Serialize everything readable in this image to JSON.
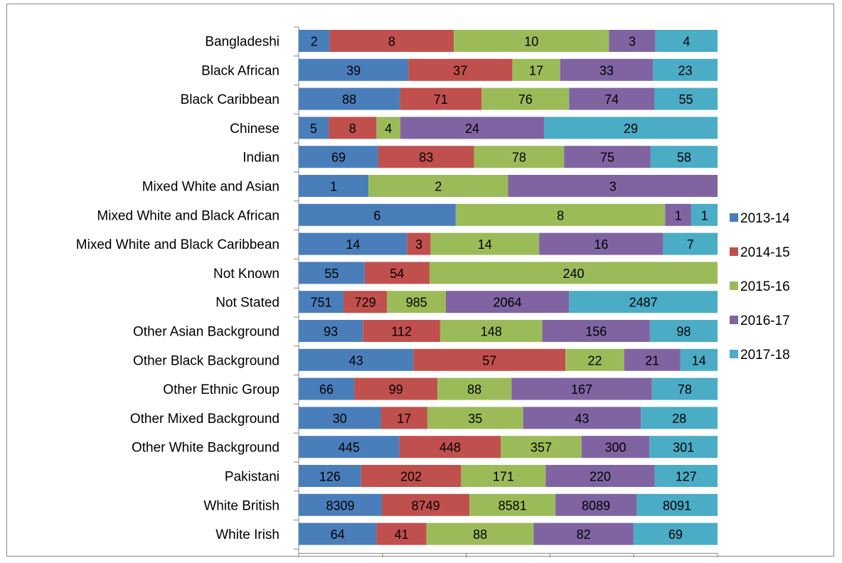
{
  "chart_data": {
    "type": "bar",
    "orientation": "horizontal",
    "stacked": "percent",
    "title": "",
    "xlabel": "",
    "ylabel": "",
    "xlim": [
      0,
      1
    ],
    "grid": false,
    "legend_position": "right",
    "categories": [
      "Bangladeshi",
      "Black African",
      "Black Caribbean",
      "Chinese",
      "Indian",
      "Mixed White and Asian",
      "Mixed White and Black African",
      "Mixed White and Black Caribbean",
      "Not Known",
      "Not Stated",
      "Other Asian Background",
      "Other Black Background",
      "Other Ethnic Group",
      "Other Mixed Background",
      "Other White Background",
      "Pakistani",
      "White British",
      "White Irish"
    ],
    "series": [
      {
        "name": "2013-14",
        "color": "#4a7ebb",
        "values": [
          2,
          39,
          88,
          5,
          69,
          1,
          6,
          14,
          55,
          751,
          93,
          43,
          66,
          30,
          445,
          126,
          8309,
          64
        ]
      },
      {
        "name": "2014-15",
        "color": "#c0504d",
        "values": [
          8,
          37,
          71,
          8,
          83,
          null,
          null,
          3,
          54,
          729,
          112,
          57,
          99,
          17,
          448,
          202,
          8749,
          41
        ]
      },
      {
        "name": "2015-16",
        "color": "#9bbb59",
        "values": [
          10,
          17,
          76,
          4,
          78,
          2,
          8,
          14,
          240,
          985,
          148,
          22,
          88,
          35,
          357,
          171,
          8581,
          88
        ]
      },
      {
        "name": "2016-17",
        "color": "#8064a2",
        "values": [
          3,
          33,
          74,
          24,
          75,
          3,
          1,
          16,
          null,
          2064,
          156,
          21,
          167,
          43,
          300,
          220,
          8089,
          82
        ]
      },
      {
        "name": "2017-18",
        "color": "#4bacc6",
        "values": [
          4,
          23,
          55,
          29,
          58,
          null,
          1,
          7,
          null,
          2487,
          98,
          14,
          78,
          28,
          301,
          127,
          8091,
          69
        ]
      }
    ]
  }
}
